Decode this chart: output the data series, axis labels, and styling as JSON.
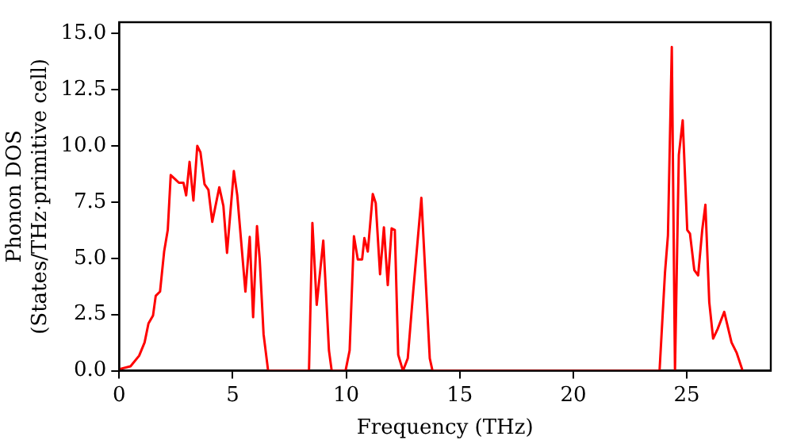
{
  "chart_data": {
    "type": "line",
    "xlabel": "Frequency (THz)",
    "ylabel": "Phonon DOS\n(States/THz·primitive cell)",
    "xlim": [
      0,
      28.7
    ],
    "ylim": [
      0,
      15.5
    ],
    "xticks": [
      0,
      5,
      10,
      15,
      20,
      25
    ],
    "yticks": [
      {
        "value": 0,
        "label": "0.0"
      },
      {
        "value": 2.5,
        "label": "2.5"
      },
      {
        "value": 5,
        "label": "5.0"
      },
      {
        "value": 7.5,
        "label": "7.5"
      },
      {
        "value": 10,
        "label": "10.0"
      },
      {
        "value": 12.5,
        "label": "12.5"
      },
      {
        "value": 15,
        "label": "15.0"
      }
    ],
    "grid": false,
    "legend": false,
    "marker": "none",
    "line_style": "solid",
    "series": [
      {
        "color": "#ff0000",
        "x": [
          0,
          0.5,
          0.88,
          1.12,
          1.29,
          1.49,
          1.61,
          1.8,
          1.98,
          2.14,
          2.27,
          2.46,
          2.63,
          2.83,
          2.95,
          3.1,
          3.27,
          3.44,
          3.58,
          3.76,
          3.93,
          4.1,
          4.41,
          4.59,
          4.75,
          5.05,
          5.2,
          5.56,
          5.75,
          5.9,
          6.07,
          6.19,
          6.36,
          6.56,
          8.36,
          8.51,
          8.7,
          8.99,
          9.24,
          9.36,
          9.97,
          10.15,
          10.34,
          10.51,
          10.7,
          10.8,
          10.95,
          11.17,
          11.3,
          11.49,
          11.66,
          11.83,
          12.0,
          12.14,
          12.29,
          12.5,
          12.71,
          12.95,
          13.31,
          13.68,
          13.8,
          23.8,
          24.04,
          24.17,
          24.34,
          24.48,
          24.65,
          24.82,
          25.02,
          25.14,
          25.33,
          25.5,
          25.68,
          25.82,
          25.99,
          26.16,
          26.36,
          26.65,
          26.97,
          27.2,
          27.46
        ],
        "values": [
          0.07,
          0.2,
          0.67,
          1.26,
          2.1,
          2.45,
          3.33,
          3.52,
          5.3,
          6.26,
          8.7,
          8.52,
          8.36,
          8.36,
          7.8,
          9.29,
          7.57,
          10,
          9.71,
          8.29,
          8.05,
          6.62,
          8.16,
          7.33,
          5.24,
          8.88,
          7.81,
          3.52,
          5.95,
          2.38,
          6.43,
          4.95,
          1.62,
          0,
          0,
          6.57,
          2.93,
          5.79,
          0.9,
          0,
          0,
          0.9,
          5.98,
          4.95,
          4.95,
          5.9,
          5.3,
          7.86,
          7.45,
          4.29,
          6.38,
          3.81,
          6.33,
          6.26,
          0.71,
          0,
          0.55,
          3.52,
          7.69,
          0.55,
          0,
          0,
          4.36,
          6.02,
          14.4,
          0,
          9.6,
          11.14,
          6.26,
          6.1,
          4.48,
          4.24,
          6.26,
          7.38,
          3.05,
          1.43,
          1.86,
          2.62,
          1.26,
          0.79,
          0
        ]
      }
    ]
  }
}
